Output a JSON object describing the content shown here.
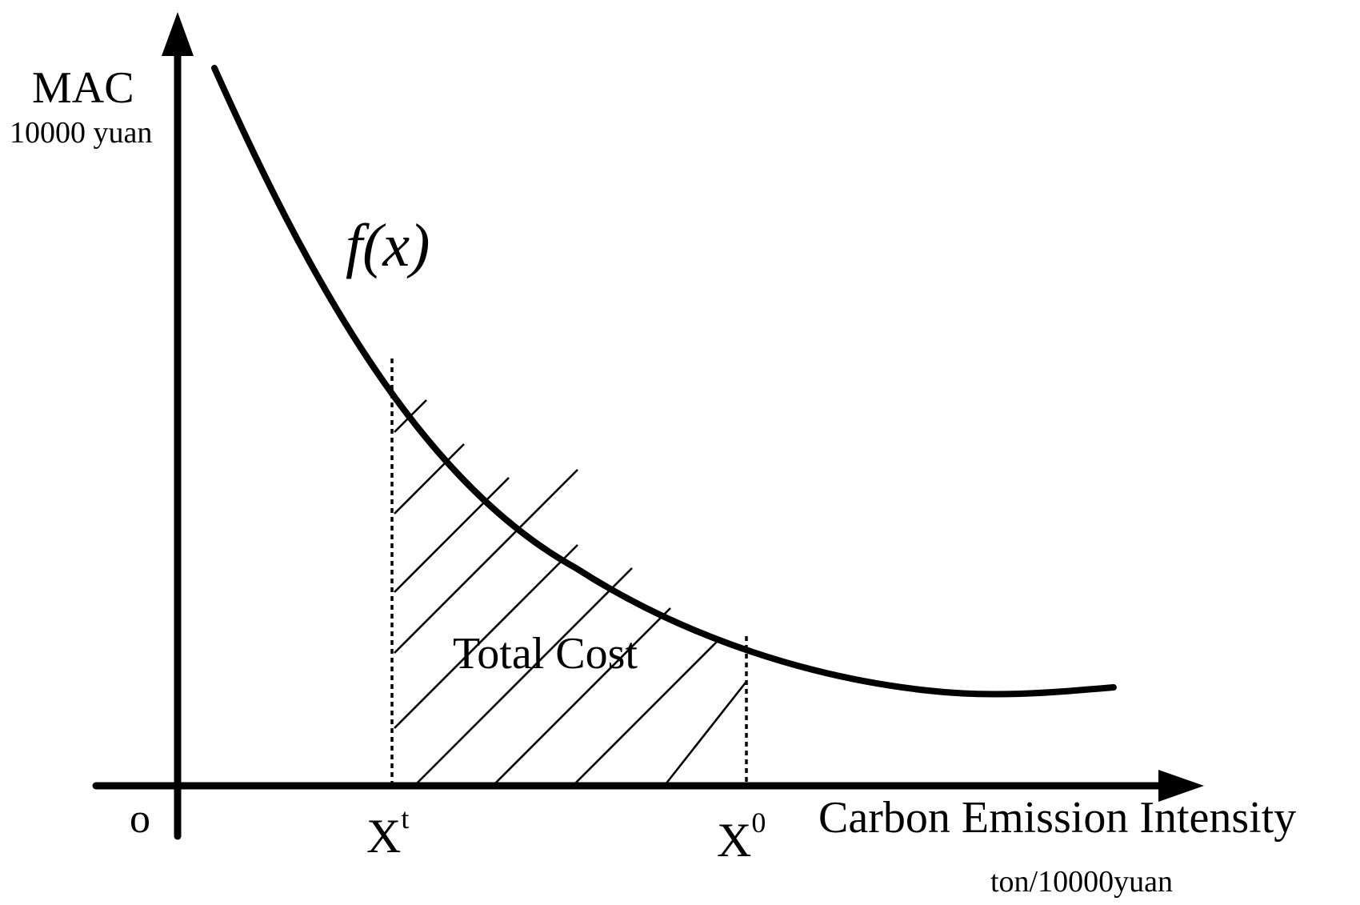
{
  "diagram": {
    "y_axis_label": "MAC",
    "y_axis_unit": "10000 yuan",
    "curve_label_f": "f",
    "curve_label_arg": "(x)",
    "area_label": "Total Cost",
    "origin_label": "o",
    "tick_xt_base": "X",
    "tick_xt_sup": "t",
    "tick_x0_base": "X",
    "tick_x0_sup": "0",
    "x_axis_label": "Carbon Emission Intensity",
    "x_axis_unit": "ton/10000yuan",
    "colors": {
      "ink": "#000000",
      "background": "#ffffff"
    }
  }
}
